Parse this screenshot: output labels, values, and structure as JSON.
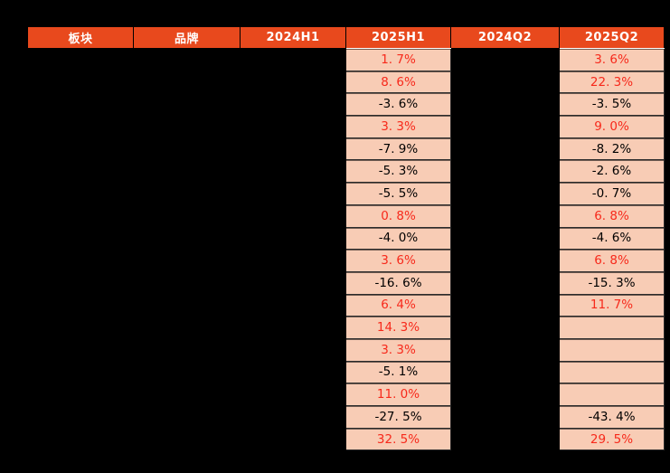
{
  "colors": {
    "background": "#000000",
    "header_bg": "#E8491D",
    "header_text": "#FFFFFF",
    "cell_bg": "#F8CCB5",
    "positive_text": "#F7291B",
    "negative_text": "#000000",
    "grid_line": "#2B2B2B",
    "header_divider": "#FFFFFF"
  },
  "table": {
    "columns": [
      {
        "key": "sector",
        "label": "板块",
        "redacted": true
      },
      {
        "key": "brand",
        "label": "品牌",
        "redacted": true
      },
      {
        "key": "h1_2024",
        "label": "2024H1",
        "redacted": true
      },
      {
        "key": "h1_2025",
        "label": "2025H1",
        "redacted": false
      },
      {
        "key": "q2_2024",
        "label": "2024Q2",
        "redacted": true
      },
      {
        "key": "q2_2025",
        "label": "2025Q2",
        "redacted": false
      }
    ],
    "rows": [
      {
        "h1_2025": "1. 7%",
        "q2_2025": "3. 6%"
      },
      {
        "h1_2025": "8. 6%",
        "q2_2025": "22. 3%"
      },
      {
        "h1_2025": "-3. 6%",
        "q2_2025": "-3. 5%"
      },
      {
        "h1_2025": "3. 3%",
        "q2_2025": "9. 0%"
      },
      {
        "h1_2025": "-7. 9%",
        "q2_2025": "-8. 2%"
      },
      {
        "h1_2025": "-5. 3%",
        "q2_2025": "-2. 6%"
      },
      {
        "h1_2025": "-5. 5%",
        "q2_2025": "-0. 7%"
      },
      {
        "h1_2025": "0. 8%",
        "q2_2025": "6. 8%"
      },
      {
        "h1_2025": "-4. 0%",
        "q2_2025": "-4. 6%"
      },
      {
        "h1_2025": "3. 6%",
        "q2_2025": "6. 8%"
      },
      {
        "h1_2025": "-16. 6%",
        "q2_2025": "-15. 3%"
      },
      {
        "h1_2025": "6. 4%",
        "q2_2025": "11. 7%"
      },
      {
        "h1_2025": "14. 3%",
        "q2_2025": ""
      },
      {
        "h1_2025": "3. 3%",
        "q2_2025": ""
      },
      {
        "h1_2025": "-5. 1%",
        "q2_2025": ""
      },
      {
        "h1_2025": "11. 0%",
        "q2_2025": ""
      },
      {
        "h1_2025": "-27. 5%",
        "q2_2025": "-43. 4%"
      },
      {
        "h1_2025": "32. 5%",
        "q2_2025": "29. 5%"
      }
    ]
  }
}
